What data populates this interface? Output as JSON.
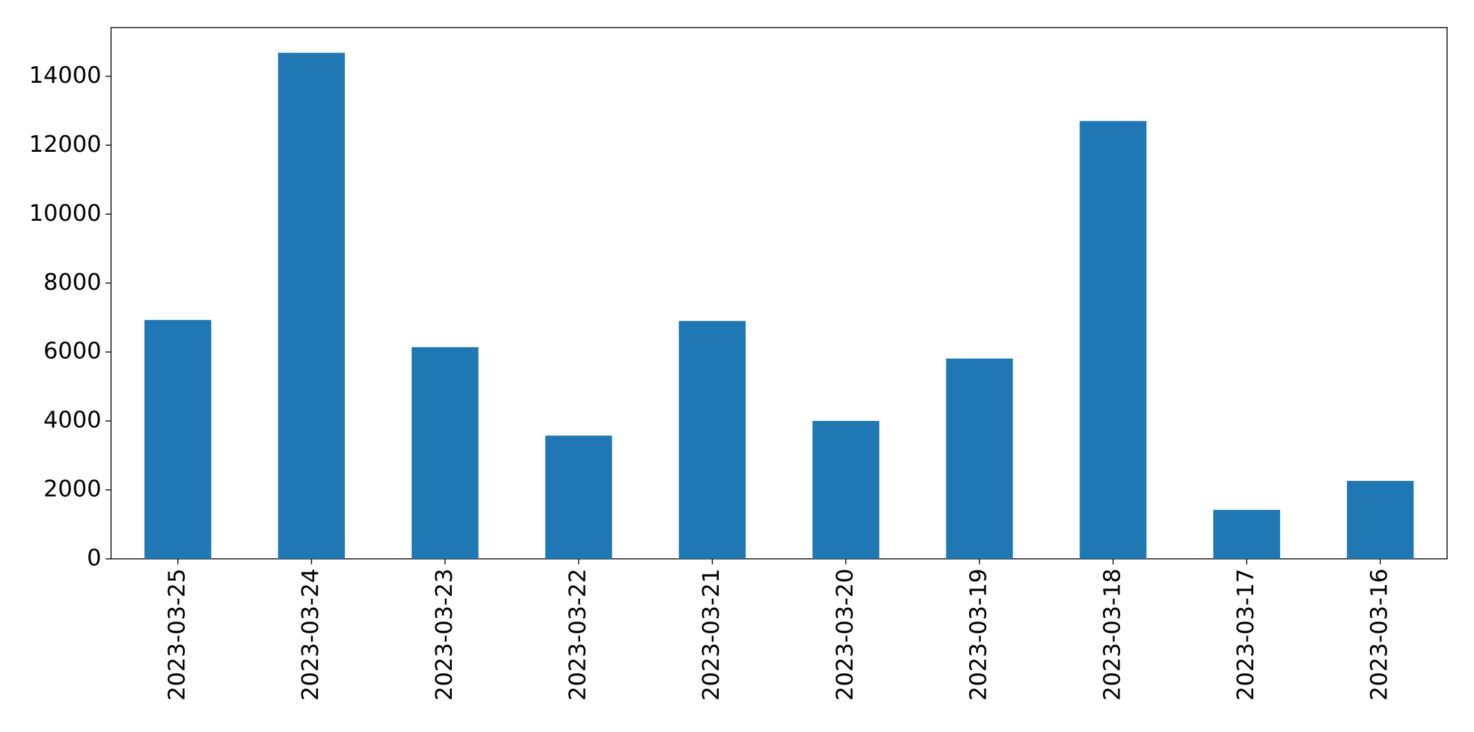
{
  "chart_data": {
    "type": "bar",
    "categories": [
      "2023-03-25",
      "2023-03-24",
      "2023-03-23",
      "2023-03-22",
      "2023-03-21",
      "2023-03-20",
      "2023-03-19",
      "2023-03-18",
      "2023-03-17",
      "2023-03-16"
    ],
    "values": [
      6930,
      14680,
      6140,
      3575,
      6900,
      4000,
      5810,
      12700,
      1420,
      2260
    ],
    "color": "#1f77b4",
    "ylim": [
      0,
      15410
    ],
    "yticks": [
      0,
      2000,
      4000,
      6000,
      8000,
      10000,
      12000,
      14000
    ],
    "grid": false
  }
}
